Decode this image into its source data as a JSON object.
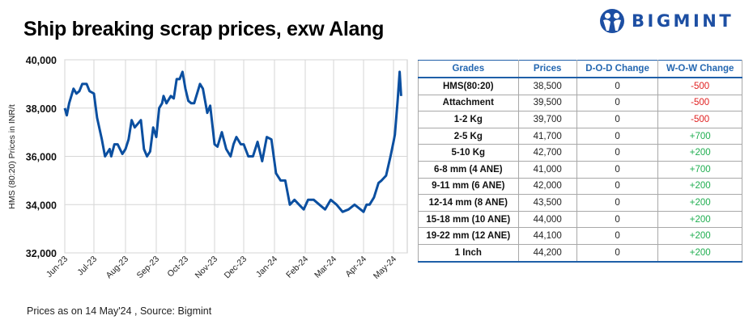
{
  "header": {
    "title": "Ship breaking scrap prices, exw Alang",
    "logo_text": "BIGMINT",
    "brand_color": "#1d4fa3"
  },
  "chart_data": {
    "type": "line",
    "title": "Ship breaking scrap prices, exw Alang",
    "xlabel": "",
    "ylabel": "HMS (80:20) Prices in INR/t",
    "ylim": [
      32000,
      40000
    ],
    "yticks": [
      "32,000",
      "34,000",
      "36,000",
      "38,000",
      "40,000"
    ],
    "xticks": [
      "Jun-23",
      "Jul-23",
      "Aug-23",
      "Sep-23",
      "Oct-23",
      "Nov-23",
      "Dec-23",
      "Jan-24",
      "Feb-24",
      "Mar-24",
      "Apr-24",
      "May-24"
    ],
    "grid": true,
    "legend": "none",
    "line_color": "#0b4fa0",
    "series": [
      {
        "name": "HMS (80:20)",
        "x_month_index": [
          0,
          0.07,
          0.15,
          0.3,
          0.4,
          0.5,
          0.6,
          0.75,
          0.85,
          1.0,
          1.1,
          1.25,
          1.35,
          1.5,
          1.55,
          1.65,
          1.75,
          1.9,
          2.0,
          2.1,
          2.2,
          2.3,
          2.5,
          2.6,
          2.7,
          2.8,
          2.9,
          3.0,
          3.1,
          3.2,
          3.25,
          3.35,
          3.5,
          3.6,
          3.7,
          3.8,
          3.9,
          4.0,
          4.1,
          4.2,
          4.3,
          4.5,
          4.6,
          4.75,
          4.85,
          5.0,
          5.1,
          5.25,
          5.4,
          5.55,
          5.65,
          5.75,
          5.9,
          6.0,
          6.15,
          6.3,
          6.45,
          6.6,
          6.75,
          6.9,
          7.05,
          7.2,
          7.35,
          7.5,
          7.65,
          7.8,
          7.95,
          8.1,
          8.3,
          8.5,
          8.7,
          8.9,
          9.1,
          9.3,
          9.5,
          9.7,
          9.9,
          10.0,
          10.1,
          10.2,
          10.35,
          10.5,
          10.6,
          10.75,
          10.9,
          11.0,
          11.1,
          11.2,
          11.3,
          11.45,
          11.55
        ],
        "values": [
          38000,
          37700,
          38200,
          38800,
          38600,
          38700,
          39000,
          39000,
          38700,
          38600,
          37600,
          36700,
          36000,
          36300,
          36000,
          36500,
          36500,
          36100,
          36300,
          36700,
          37500,
          37200,
          37500,
          36300,
          36000,
          36200,
          37200,
          36800,
          38000,
          38200,
          38500,
          38200,
          38500,
          38400,
          39200,
          39200,
          39500,
          38800,
          38300,
          38200,
          38200,
          39000,
          38800,
          37800,
          38100,
          36500,
          36400,
          37000,
          36300,
          36000,
          36500,
          36800,
          36500,
          36500,
          36000,
          36000,
          36600,
          35800,
          36800,
          36700,
          35300,
          35000,
          35000,
          34000,
          34200,
          34000,
          33800,
          34200,
          34200,
          34000,
          33800,
          34200,
          34000,
          33700,
          33800,
          34000,
          33800,
          33700,
          34000,
          34000,
          34300,
          34900,
          35000,
          35200,
          36000,
          36600,
          36900,
          37600,
          38300,
          39500,
          38500
        ]
      }
    ]
  },
  "table": {
    "headers": [
      "Grades",
      "Prices",
      "D-O-D Change",
      "W-O-W Change"
    ],
    "rows": [
      {
        "grade": "HMS(80:20)",
        "price": "38,500",
        "dod": "0",
        "wow": "-500",
        "dir": "neg"
      },
      {
        "grade": "Attachment",
        "price": "39,500",
        "dod": "0",
        "wow": "-500",
        "dir": "neg"
      },
      {
        "grade": "1-2 Kg",
        "price": "39,700",
        "dod": "0",
        "wow": "-500",
        "dir": "neg"
      },
      {
        "grade": "2-5 Kg",
        "price": "41,700",
        "dod": "0",
        "wow": "+700",
        "dir": "pos"
      },
      {
        "grade": "5-10 Kg",
        "price": "42,700",
        "dod": "0",
        "wow": "+200",
        "dir": "pos"
      },
      {
        "grade": "6-8 mm (4 ANE)",
        "price": "41,000",
        "dod": "0",
        "wow": "+700",
        "dir": "pos"
      },
      {
        "grade": "9-11 mm (6 ANE)",
        "price": "42,000",
        "dod": "0",
        "wow": "+200",
        "dir": "pos"
      },
      {
        "grade": "12-14 mm (8 ANE)",
        "price": "43,500",
        "dod": "0",
        "wow": "+200",
        "dir": "pos"
      },
      {
        "grade": "15-18 mm (10 ANE)",
        "price": "44,000",
        "dod": "0",
        "wow": "+200",
        "dir": "pos"
      },
      {
        "grade": "19-22 mm (12 ANE)",
        "price": "44,100",
        "dod": "0",
        "wow": "+200",
        "dir": "pos"
      },
      {
        "grade": "1 Inch",
        "price": "44,200",
        "dod": "0",
        "wow": "+200",
        "dir": "pos"
      }
    ],
    "colors": {
      "header_text": "#2467b1",
      "negative": "#e02020",
      "positive": "#1fae50"
    }
  },
  "footer": {
    "note": "Prices as on 14 May'24 , Source: Bigmint"
  }
}
